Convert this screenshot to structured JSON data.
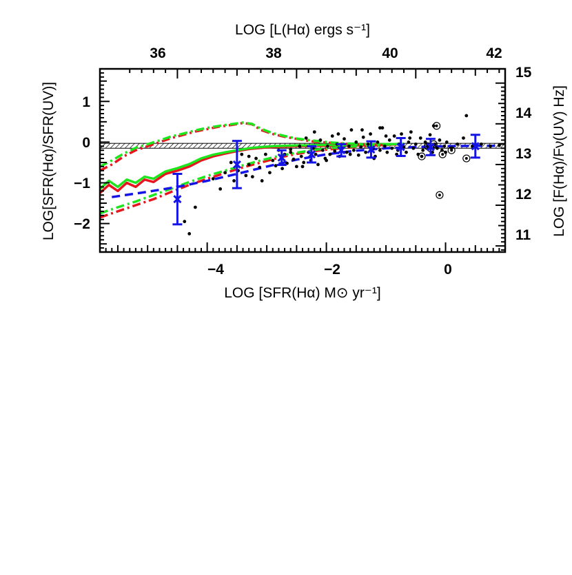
{
  "chart_data": {
    "type": "scatter",
    "xlabel": "LOG [SFR(Hα) M⊙ yr⁻¹]",
    "x2label": "LOG [L(Hα) ergs s⁻¹]",
    "ylabel": "LOG[SFR(Hα)/SFR(UV)]",
    "y2label": "LOG [F(Hα)/Fν(UV) Hz]",
    "xlim": [
      -5.8,
      1.0
    ],
    "ylim": [
      -2.7,
      1.8
    ],
    "x_ticks": [
      "−4",
      "−2",
      "0"
    ],
    "y_ticks": [
      "1",
      "0",
      "−1",
      "−2"
    ],
    "x2_ticks": [
      "36",
      "38",
      "40",
      "42"
    ],
    "y2_ticks": [
      "15",
      "14",
      "13",
      "12",
      "11"
    ],
    "x2_tick_values": [
      -4.5,
      -2.5,
      -0.5,
      1.0
    ],
    "y2_tick_values": [
      1.45,
      0.45,
      -0.55,
      -1.55,
      -2.55
    ],
    "reference_band": {
      "y_min": -0.15,
      "y_max": -0.03,
      "style": "hatched"
    },
    "colors": {
      "red": "#e8141e",
      "green": "#1ee61e",
      "blue": "#1414e6",
      "black": "#000000"
    },
    "series": [
      {
        "kind": "line-solid",
        "color": "red",
        "x": [
          -5.8,
          -5.65,
          -5.5,
          -5.35,
          -5.2,
          -5.05,
          -4.9,
          -4.7,
          -4.5,
          -4.3,
          -4.1,
          -3.9,
          -3.7,
          -3.5,
          -3.3,
          -3.1,
          -2.9,
          -2.7,
          -2.5,
          -2.3,
          -2.1,
          -1.9,
          -1.7,
          -1.5,
          -1.3,
          -1.1,
          -0.9,
          -0.7
        ],
        "y": [
          -1.25,
          -1.05,
          -1.2,
          -1.0,
          -1.1,
          -0.92,
          -0.98,
          -0.78,
          -0.7,
          -0.6,
          -0.45,
          -0.35,
          -0.28,
          -0.22,
          -0.17,
          -0.14,
          -0.12,
          -0.11,
          -0.1,
          -0.1,
          -0.09,
          -0.09,
          -0.09,
          -0.08,
          -0.08,
          -0.07,
          -0.06,
          -0.05
        ]
      },
      {
        "kind": "line-solid",
        "color": "green",
        "x": [
          -5.8,
          -5.65,
          -5.5,
          -5.35,
          -5.2,
          -5.05,
          -4.9,
          -4.7,
          -4.5,
          -4.3,
          -4.1,
          -3.9,
          -3.7,
          -3.5,
          -3.3,
          -3.1,
          -2.9,
          -2.7,
          -2.5,
          -2.3,
          -2.1,
          -1.9,
          -1.7,
          -1.5,
          -1.3,
          -1.1,
          -0.9,
          -0.7
        ],
        "y": [
          -1.15,
          -0.95,
          -1.1,
          -0.92,
          -1.0,
          -0.85,
          -0.9,
          -0.72,
          -0.64,
          -0.54,
          -0.4,
          -0.31,
          -0.25,
          -0.2,
          -0.15,
          -0.12,
          -0.1,
          -0.09,
          -0.08,
          -0.08,
          -0.07,
          -0.07,
          -0.07,
          -0.06,
          -0.06,
          -0.05,
          -0.05,
          -0.04
        ]
      },
      {
        "kind": "line-dashdot",
        "color": "red",
        "x": [
          -5.8,
          -5.6,
          -5.4,
          -5.2,
          -5.0,
          -4.8,
          -4.6,
          -4.4,
          -4.2,
          -4.0,
          -3.8,
          -3.6,
          -3.4,
          -3.25,
          -3.1,
          -2.9,
          -2.7,
          -2.5,
          -2.3,
          -2.1,
          -1.9,
          -1.7,
          -1.5,
          -1.3,
          -1.1,
          -0.9
        ],
        "y": [
          -0.7,
          -0.55,
          -0.35,
          -0.2,
          -0.1,
          0.0,
          0.1,
          0.18,
          0.26,
          0.32,
          0.38,
          0.42,
          0.47,
          0.44,
          0.3,
          0.2,
          0.13,
          0.08,
          0.03,
          0.0,
          -0.02,
          -0.04,
          -0.05,
          -0.06,
          -0.07,
          -0.07
        ]
      },
      {
        "kind": "line-dashdot",
        "color": "green",
        "x": [
          -5.8,
          -5.6,
          -5.4,
          -5.2,
          -5.0,
          -4.8,
          -4.6,
          -4.4,
          -4.2,
          -4.0,
          -3.8,
          -3.6,
          -3.4,
          -3.25,
          -3.1,
          -2.9,
          -2.7,
          -2.5,
          -2.3,
          -2.1,
          -1.9,
          -1.7,
          -1.5,
          -1.3,
          -1.1,
          -0.9
        ],
        "y": [
          -0.6,
          -0.45,
          -0.28,
          -0.14,
          -0.05,
          0.04,
          0.14,
          0.21,
          0.29,
          0.35,
          0.4,
          0.44,
          0.48,
          0.45,
          0.33,
          0.22,
          0.15,
          0.09,
          0.05,
          0.02,
          -0.01,
          -0.03,
          -0.04,
          -0.05,
          -0.06,
          -0.06
        ]
      },
      {
        "kind": "line-dashdot",
        "color": "red",
        "x": [
          -5.8,
          -5.5,
          -5.2,
          -4.9,
          -4.6,
          -4.3,
          -4.0,
          -3.7,
          -3.4,
          -3.1,
          -2.8,
          -2.5,
          -2.2,
          -1.9,
          -1.6,
          -1.3,
          -1.0
        ],
        "y": [
          -1.85,
          -1.7,
          -1.55,
          -1.4,
          -1.22,
          -1.05,
          -0.9,
          -0.76,
          -0.62,
          -0.5,
          -0.38,
          -0.29,
          -0.22,
          -0.17,
          -0.13,
          -0.1,
          -0.08
        ]
      },
      {
        "kind": "line-dashdot",
        "color": "green",
        "x": [
          -5.8,
          -5.5,
          -5.2,
          -4.9,
          -4.6,
          -4.3,
          -4.0,
          -3.7,
          -3.4,
          -3.1,
          -2.8,
          -2.5,
          -2.2,
          -1.9,
          -1.6,
          -1.3,
          -1.0
        ],
        "y": [
          -1.75,
          -1.6,
          -1.46,
          -1.3,
          -1.14,
          -0.98,
          -0.83,
          -0.7,
          -0.57,
          -0.45,
          -0.34,
          -0.26,
          -0.19,
          -0.14,
          -0.11,
          -0.09,
          -0.07
        ]
      },
      {
        "kind": "line-dashed",
        "color": "blue",
        "x": [
          -5.6,
          -5.0,
          -4.5,
          -4.0,
          -3.5,
          -3.0,
          -2.5,
          -2.0,
          -1.5,
          -1.0,
          -0.5,
          0.0,
          0.5,
          0.9
        ],
        "y": [
          -1.35,
          -1.22,
          -1.1,
          -0.95,
          -0.78,
          -0.6,
          -0.43,
          -0.3,
          -0.21,
          -0.15,
          -0.12,
          -0.1,
          -0.09,
          -0.09
        ]
      }
    ],
    "binned_means": {
      "color": "blue",
      "x": [
        -4.5,
        -3.5,
        -2.75,
        -2.25,
        -1.75,
        -1.25,
        -0.75,
        -0.25,
        0.5
      ],
      "y": [
        -1.4,
        -0.55,
        -0.38,
        -0.3,
        -0.2,
        -0.18,
        -0.12,
        -0.12,
        -0.1
      ],
      "err": [
        0.62,
        0.58,
        0.18,
        0.2,
        0.15,
        0.2,
        0.22,
        0.2,
        0.28
      ]
    },
    "points": {
      "color": "black",
      "x": [
        -4.38,
        -4.3,
        -4.2,
        -3.9,
        -3.78,
        -3.7,
        -3.6,
        -3.55,
        -3.48,
        -3.42,
        -3.35,
        -3.3,
        -3.24,
        -3.18,
        -3.12,
        -3.08,
        -3.02,
        -2.95,
        -2.9,
        -2.85,
        -2.8,
        -2.74,
        -2.7,
        -2.66,
        -2.6,
        -2.55,
        -2.5,
        -2.45,
        -2.42,
        -2.38,
        -2.34,
        -2.3,
        -2.26,
        -2.22,
        -2.18,
        -2.14,
        -2.1,
        -2.06,
        -2.02,
        -1.98,
        -1.94,
        -1.9,
        -1.86,
        -1.82,
        -1.78,
        -1.74,
        -1.7,
        -1.66,
        -1.62,
        -1.58,
        -1.54,
        -1.5,
        -1.46,
        -1.42,
        -1.38,
        -1.34,
        -1.3,
        -1.26,
        -1.22,
        -1.18,
        -1.14,
        -1.1,
        -1.06,
        -1.02,
        -0.98,
        -0.94,
        -0.9,
        -0.86,
        -0.82,
        -0.78,
        -0.74,
        -0.7,
        -0.66,
        -0.62,
        -0.58,
        -0.54,
        -0.5,
        -0.46,
        -0.42,
        -0.38,
        -0.34,
        -0.3,
        -0.26,
        -0.22,
        -0.18,
        -0.14,
        -0.1,
        -0.06,
        -0.02,
        0.02,
        0.1,
        0.2,
        0.3,
        0.45,
        0.6,
        0.75,
        0.9,
        -2.4,
        -2.0,
        -1.6,
        -1.2,
        -0.8,
        -0.4,
        0.0,
        -2.2,
        -1.8,
        -1.4,
        -1.0,
        -0.6,
        -0.2,
        -3.3,
        -2.6,
        -1.1,
        -0.3,
        0.35
      ],
      "y": [
        -1.95,
        -2.25,
        -1.6,
        -0.9,
        -1.15,
        -0.75,
        -0.5,
        -0.95,
        -0.7,
        -0.3,
        -0.82,
        -0.55,
        -0.85,
        -0.4,
        -0.62,
        -0.95,
        -0.3,
        -0.75,
        -0.45,
        -0.58,
        -0.2,
        -0.65,
        -0.3,
        -0.52,
        -0.18,
        -0.42,
        -0.6,
        -0.1,
        -0.35,
        -0.5,
        0.1,
        -0.25,
        -0.45,
        -0.15,
        -0.3,
        -0.55,
        0.05,
        -0.2,
        -0.4,
        -0.1,
        -0.3,
        0.15,
        -0.22,
        -0.05,
        -0.35,
        -0.15,
        0.08,
        -0.25,
        -0.1,
        0.3,
        -0.2,
        0.0,
        -0.32,
        -0.12,
        0.12,
        -0.25,
        -0.05,
        0.2,
        -0.15,
        -0.35,
        0.0,
        -0.2,
        0.35,
        -0.1,
        -0.25,
        0.05,
        -0.15,
        0.15,
        -0.3,
        -0.05,
        0.2,
        -0.12,
        -0.25,
        0.0,
        0.25,
        -0.15,
        -0.05,
        -0.3,
        0.1,
        -0.2,
        0.0,
        -0.1,
        0.18,
        -0.25,
        -0.05,
        -0.15,
        0.05,
        -0.2,
        -0.1,
        0.0,
        -0.15,
        -0.05,
        0.1,
        -0.1,
        -0.05,
        -0.1,
        -0.08,
        -0.6,
        -0.45,
        -0.3,
        -0.4,
        -0.2,
        -0.35,
        -0.25,
        0.25,
        0.2,
        0.3,
        0.15,
        0.1,
        0.4,
        -0.35,
        -0.25,
        0.35,
        -0.05,
        0.65
      ]
    },
    "circled_points": {
      "x": [
        -0.4,
        -0.25,
        -0.2,
        -0.15,
        -0.05,
        0.1,
        0.35,
        -0.3,
        -0.1
      ],
      "y": [
        -0.35,
        -0.15,
        -0.05,
        0.4,
        -0.3,
        -0.2,
        -0.4,
        -0.1,
        -1.3
      ]
    }
  }
}
